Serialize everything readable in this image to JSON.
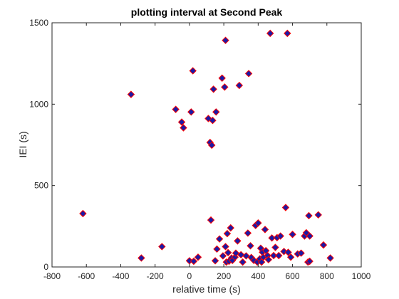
{
  "chart_data": {
    "type": "scatter",
    "title": "plotting interval at Second Peak",
    "xlabel": "relative time (s)",
    "ylabel": "IEI (s)",
    "xlim": [
      -800,
      1000
    ],
    "ylim": [
      0,
      1500
    ],
    "xticks": [
      "-800",
      "-600",
      "-400",
      "-200",
      "0",
      "200",
      "400",
      "600",
      "800",
      "1000"
    ],
    "yticks": [
      "0",
      "500",
      "1000",
      "1500"
    ],
    "grid": false,
    "marker": "diamond",
    "marker_face_color": "#1a1aa6",
    "marker_edge_color": "#ff0000",
    "points": [
      [
        -620,
        328
      ],
      [
        -340,
        1060
      ],
      [
        -280,
        55
      ],
      [
        -160,
        125
      ],
      [
        -80,
        968
      ],
      [
        -45,
        890
      ],
      [
        -35,
        855
      ],
      [
        0,
        38
      ],
      [
        10,
        952
      ],
      [
        20,
        1205
      ],
      [
        25,
        35
      ],
      [
        50,
        60
      ],
      [
        110,
        912
      ],
      [
        120,
        765
      ],
      [
        125,
        288
      ],
      [
        130,
        748
      ],
      [
        135,
        900
      ],
      [
        140,
        1092
      ],
      [
        150,
        38
      ],
      [
        155,
        952
      ],
      [
        160,
        110
      ],
      [
        175,
        172
      ],
      [
        190,
        1160
      ],
      [
        195,
        68
      ],
      [
        205,
        1105
      ],
      [
        210,
        1392
      ],
      [
        210,
        125
      ],
      [
        215,
        30
      ],
      [
        220,
        205
      ],
      [
        225,
        88
      ],
      [
        230,
        35
      ],
      [
        240,
        240
      ],
      [
        245,
        55
      ],
      [
        250,
        40
      ],
      [
        265,
        60
      ],
      [
        270,
        85
      ],
      [
        280,
        160
      ],
      [
        290,
        1115
      ],
      [
        300,
        75
      ],
      [
        310,
        30
      ],
      [
        330,
        68
      ],
      [
        340,
        208
      ],
      [
        345,
        1188
      ],
      [
        355,
        130
      ],
      [
        360,
        58
      ],
      [
        375,
        40
      ],
      [
        385,
        255
      ],
      [
        395,
        30
      ],
      [
        400,
        270
      ],
      [
        410,
        50
      ],
      [
        415,
        115
      ],
      [
        420,
        30
      ],
      [
        425,
        90
      ],
      [
        430,
        60
      ],
      [
        440,
        230
      ],
      [
        445,
        100
      ],
      [
        455,
        70
      ],
      [
        460,
        45
      ],
      [
        470,
        1435
      ],
      [
        480,
        178
      ],
      [
        490,
        70
      ],
      [
        500,
        120
      ],
      [
        510,
        180
      ],
      [
        520,
        70
      ],
      [
        530,
        190
      ],
      [
        550,
        95
      ],
      [
        560,
        365
      ],
      [
        570,
        1435
      ],
      [
        575,
        90
      ],
      [
        590,
        60
      ],
      [
        600,
        200
      ],
      [
        630,
        80
      ],
      [
        650,
        85
      ],
      [
        670,
        190
      ],
      [
        680,
        210
      ],
      [
        690,
        30
      ],
      [
        695,
        315
      ],
      [
        700,
        190
      ],
      [
        700,
        35
      ],
      [
        750,
        320
      ],
      [
        780,
        135
      ],
      [
        820,
        55
      ]
    ]
  }
}
